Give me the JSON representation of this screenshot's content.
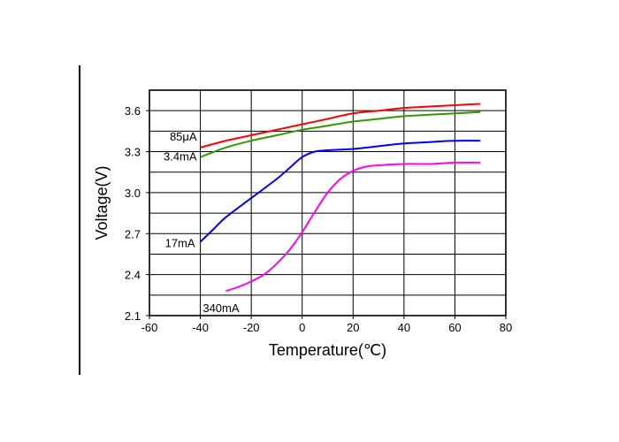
{
  "chart_data": {
    "type": "line",
    "title": "",
    "xlabel": "Temperature(℃)",
    "ylabel": "Voltage(V)",
    "xlim": [
      -60,
      80
    ],
    "ylim": [
      2.1,
      3.75
    ],
    "xticks": [
      -60,
      -40,
      -20,
      0,
      20,
      40,
      60,
      80
    ],
    "xtick_labels": [
      "-60",
      "-40",
      "-20",
      "0",
      "20",
      "40",
      "60",
      "80"
    ],
    "yticks": [
      2.1,
      2.4,
      2.7,
      3.0,
      3.3,
      3.6
    ],
    "ytick_labels": [
      "2.1",
      "2.4",
      "2.7",
      "3.0",
      "3.3",
      "3.6"
    ],
    "grid": true,
    "legend": "none",
    "series": [
      {
        "name": "85μA",
        "color": "#ff0000",
        "x": [
          -40,
          -30,
          -20,
          -10,
          0,
          10,
          20,
          30,
          40,
          50,
          60,
          70
        ],
        "y": [
          3.33,
          3.38,
          3.42,
          3.46,
          3.5,
          3.54,
          3.58,
          3.6,
          3.62,
          3.63,
          3.64,
          3.65
        ]
      },
      {
        "name": "3.4mA",
        "color": "#339900",
        "x": [
          -40,
          -30,
          -20,
          -10,
          0,
          10,
          20,
          30,
          40,
          50,
          60,
          70
        ],
        "y": [
          3.26,
          3.33,
          3.38,
          3.42,
          3.46,
          3.49,
          3.52,
          3.54,
          3.56,
          3.57,
          3.58,
          3.59
        ]
      },
      {
        "name": "17mA",
        "color": "#0000ff",
        "x": [
          -40,
          -35,
          -30,
          -20,
          -10,
          -5,
          0,
          5,
          10,
          20,
          30,
          40,
          50,
          60,
          70
        ],
        "y": [
          2.64,
          2.73,
          2.82,
          2.96,
          3.1,
          3.18,
          3.26,
          3.3,
          3.31,
          3.32,
          3.34,
          3.36,
          3.37,
          3.38,
          3.38
        ]
      },
      {
        "name": "340mA",
        "color": "#ff00ff",
        "x": [
          -30,
          -25,
          -20,
          -15,
          -10,
          -5,
          0,
          5,
          10,
          15,
          20,
          25,
          30,
          40,
          50,
          60,
          70
        ],
        "y": [
          2.28,
          2.31,
          2.35,
          2.4,
          2.48,
          2.58,
          2.71,
          2.86,
          3.0,
          3.1,
          3.16,
          3.19,
          3.2,
          3.21,
          3.21,
          3.22,
          3.22
        ]
      }
    ],
    "annotations": [
      {
        "text": "85μA",
        "series": 0
      },
      {
        "text": "3.4mA",
        "series": 1
      },
      {
        "text": "17mA",
        "series": 2
      },
      {
        "text": "340mA",
        "series": 3
      }
    ]
  }
}
